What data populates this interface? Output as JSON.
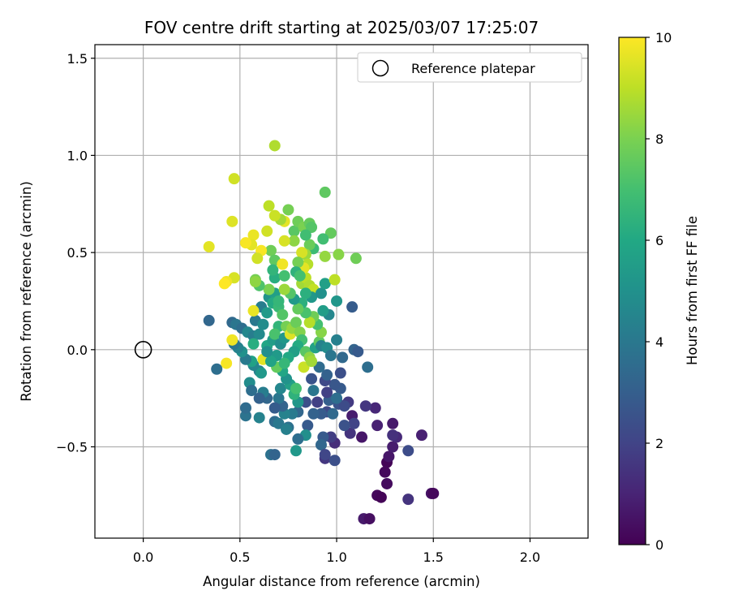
{
  "chart_data": {
    "type": "scatter",
    "title": "FOV centre drift starting at 2025/03/07 17:25:07",
    "xlabel": "Angular distance from reference (arcmin)",
    "ylabel": "Rotation from reference (arcmin)",
    "xlim": [
      -0.25,
      2.3
    ],
    "ylim": [
      -0.97,
      1.57
    ],
    "xticks": [
      0.0,
      0.5,
      1.0,
      1.5,
      2.0
    ],
    "xtick_labels": [
      "0.0",
      "0.5",
      "1.0",
      "1.5",
      "2.0"
    ],
    "yticks": [
      -0.5,
      0.0,
      0.5,
      1.0,
      1.5
    ],
    "ytick_labels": [
      "−0.5",
      "0.0",
      "0.5",
      "1.0",
      "1.5"
    ],
    "grid": true,
    "legend": {
      "placement": "top-right",
      "entries": [
        {
          "label": "Reference platepar",
          "marker": "open-circle"
        }
      ]
    },
    "reference_point": {
      "x": 0.0,
      "y": 0.0
    },
    "colorbar": {
      "label": "Hours from first FF file",
      "colormap": "viridis",
      "range": [
        0,
        10
      ],
      "ticks": [
        0,
        2,
        4,
        6,
        8,
        10
      ],
      "tick_labels": [
        "0",
        "2",
        "4",
        "6",
        "8",
        "10"
      ]
    },
    "points": [
      {
        "x": 1.26,
        "y": -0.58,
        "h": 0.1
      },
      {
        "x": 1.25,
        "y": -0.63,
        "h": 0.2
      },
      {
        "x": 1.26,
        "y": -0.69,
        "h": 0.3
      },
      {
        "x": 1.21,
        "y": -0.75,
        "h": 0.2
      },
      {
        "x": 1.23,
        "y": -0.76,
        "h": 0.1
      },
      {
        "x": 1.14,
        "y": -0.87,
        "h": 0.7
      },
      {
        "x": 1.17,
        "y": -0.87,
        "h": 0.4
      },
      {
        "x": 1.49,
        "y": -0.74,
        "h": 0.5
      },
      {
        "x": 1.5,
        "y": -0.74,
        "h": 0.2
      },
      {
        "x": 1.37,
        "y": -0.77,
        "h": 1.5
      },
      {
        "x": 1.27,
        "y": -0.55,
        "h": 0.6
      },
      {
        "x": 1.29,
        "y": -0.5,
        "h": 0.8
      },
      {
        "x": 1.31,
        "y": -0.45,
        "h": 1.2
      },
      {
        "x": 1.44,
        "y": -0.44,
        "h": 0.9
      },
      {
        "x": 1.29,
        "y": -0.38,
        "h": 0.7
      },
      {
        "x": 1.21,
        "y": -0.39,
        "h": 0.9
      },
      {
        "x": 1.2,
        "y": -0.3,
        "h": 1.1
      },
      {
        "x": 1.15,
        "y": -0.29,
        "h": 1.6
      },
      {
        "x": 1.13,
        "y": -0.45,
        "h": 0.6
      },
      {
        "x": 1.37,
        "y": -0.52,
        "h": 2.3
      },
      {
        "x": 1.29,
        "y": -0.44,
        "h": 1.4
      },
      {
        "x": 1.08,
        "y": -0.34,
        "h": 0.8
      },
      {
        "x": 1.07,
        "y": -0.43,
        "h": 1.5
      },
      {
        "x": 1.09,
        "y": -0.38,
        "h": 2.0
      },
      {
        "x": 1.04,
        "y": -0.39,
        "h": 2.5
      },
      {
        "x": 0.99,
        "y": -0.48,
        "h": 1.3
      },
      {
        "x": 0.97,
        "y": -0.45,
        "h": 1.8
      },
      {
        "x": 0.93,
        "y": -0.45,
        "h": 2.8
      },
      {
        "x": 0.94,
        "y": -0.56,
        "h": 1.6
      },
      {
        "x": 0.99,
        "y": -0.57,
        "h": 2.4
      },
      {
        "x": 0.92,
        "y": -0.49,
        "h": 3.3
      },
      {
        "x": 0.94,
        "y": -0.54,
        "h": 2.1
      },
      {
        "x": 1.01,
        "y": -0.28,
        "h": 2.6
      },
      {
        "x": 0.95,
        "y": -0.32,
        "h": 2.2
      },
      {
        "x": 0.92,
        "y": -0.33,
        "h": 2.9
      },
      {
        "x": 0.9,
        "y": -0.27,
        "h": 1.9
      },
      {
        "x": 0.98,
        "y": -0.33,
        "h": 3.4
      },
      {
        "x": 0.96,
        "y": -0.26,
        "h": 3.0
      },
      {
        "x": 1.06,
        "y": -0.27,
        "h": 1.7
      },
      {
        "x": 1.04,
        "y": -0.29,
        "h": 2.3
      },
      {
        "x": 1.02,
        "y": -0.2,
        "h": 2.8
      },
      {
        "x": 1.0,
        "y": -0.25,
        "h": 3.6
      },
      {
        "x": 0.99,
        "y": -0.18,
        "h": 2.7
      },
      {
        "x": 0.94,
        "y": -0.16,
        "h": 2.2
      },
      {
        "x": 0.95,
        "y": -0.13,
        "h": 3.1
      },
      {
        "x": 0.87,
        "y": -0.15,
        "h": 2.6
      },
      {
        "x": 0.91,
        "y": -0.09,
        "h": 3.5
      },
      {
        "x": 0.88,
        "y": -0.21,
        "h": 3.9
      },
      {
        "x": 0.84,
        "y": -0.27,
        "h": 2.4
      },
      {
        "x": 0.88,
        "y": -0.33,
        "h": 3.1
      },
      {
        "x": 0.85,
        "y": -0.39,
        "h": 2.8
      },
      {
        "x": 0.8,
        "y": -0.32,
        "h": 3.3
      },
      {
        "x": 0.8,
        "y": -0.27,
        "h": 5.2
      },
      {
        "x": 0.77,
        "y": -0.33,
        "h": 4.1
      },
      {
        "x": 0.75,
        "y": -0.4,
        "h": 3.7
      },
      {
        "x": 0.73,
        "y": -0.33,
        "h": 4.4
      },
      {
        "x": 0.72,
        "y": -0.29,
        "h": 3.2
      },
      {
        "x": 0.7,
        "y": -0.25,
        "h": 3.9
      },
      {
        "x": 0.68,
        "y": -0.3,
        "h": 2.9
      },
      {
        "x": 0.71,
        "y": -0.2,
        "h": 4.6
      },
      {
        "x": 0.76,
        "y": -0.18,
        "h": 5.6
      },
      {
        "x": 0.78,
        "y": -0.23,
        "h": 6.4
      },
      {
        "x": 0.79,
        "y": -0.2,
        "h": 7.0
      },
      {
        "x": 0.74,
        "y": -0.15,
        "h": 5.1
      },
      {
        "x": 0.72,
        "y": -0.11,
        "h": 5.9
      },
      {
        "x": 0.69,
        "y": -0.09,
        "h": 7.6
      },
      {
        "x": 0.68,
        "y": -0.37,
        "h": 3.5
      },
      {
        "x": 0.7,
        "y": -0.38,
        "h": 4.0
      },
      {
        "x": 0.66,
        "y": -0.54,
        "h": 3.7
      },
      {
        "x": 0.68,
        "y": -0.54,
        "h": 3.2
      },
      {
        "x": 0.74,
        "y": -0.41,
        "h": 4.3
      },
      {
        "x": 0.79,
        "y": -0.52,
        "h": 5.3
      },
      {
        "x": 0.84,
        "y": -0.44,
        "h": 4.9
      },
      {
        "x": 0.8,
        "y": -0.46,
        "h": 3.6
      },
      {
        "x": 0.64,
        "y": -0.25,
        "h": 3.3
      },
      {
        "x": 0.62,
        "y": -0.22,
        "h": 4.2
      },
      {
        "x": 0.6,
        "y": -0.25,
        "h": 3.1
      },
      {
        "x": 0.6,
        "y": -0.35,
        "h": 4.4
      },
      {
        "x": 0.53,
        "y": -0.34,
        "h": 3.8
      },
      {
        "x": 0.53,
        "y": -0.3,
        "h": 3.5
      },
      {
        "x": 0.55,
        "y": -0.17,
        "h": 4.8
      },
      {
        "x": 0.56,
        "y": -0.21,
        "h": 3.6
      },
      {
        "x": 0.6,
        "y": -0.11,
        "h": 4.3
      },
      {
        "x": 0.61,
        "y": -0.12,
        "h": 5.3
      },
      {
        "x": 0.57,
        "y": -0.08,
        "h": 4.5
      },
      {
        "x": 0.56,
        "y": -0.06,
        "h": 5.7
      },
      {
        "x": 0.53,
        "y": -0.05,
        "h": 4.1
      },
      {
        "x": 0.51,
        "y": -0.01,
        "h": 5.0
      },
      {
        "x": 0.49,
        "y": 0.01,
        "h": 4.4
      },
      {
        "x": 0.47,
        "y": 0.03,
        "h": 3.9
      },
      {
        "x": 0.46,
        "y": 0.05,
        "h": 9.8
      },
      {
        "x": 0.43,
        "y": -0.07,
        "h": 9.9
      },
      {
        "x": 0.38,
        "y": -0.1,
        "h": 3.6
      },
      {
        "x": 0.34,
        "y": 0.15,
        "h": 3.3
      },
      {
        "x": 0.46,
        "y": 0.14,
        "h": 3.4
      },
      {
        "x": 0.48,
        "y": 0.13,
        "h": 3.9
      },
      {
        "x": 0.51,
        "y": 0.11,
        "h": 3.6
      },
      {
        "x": 0.54,
        "y": 0.09,
        "h": 4.6
      },
      {
        "x": 0.57,
        "y": 0.07,
        "h": 4.2
      },
      {
        "x": 0.6,
        "y": 0.08,
        "h": 4.7
      },
      {
        "x": 0.58,
        "y": 0.15,
        "h": 4.0
      },
      {
        "x": 0.62,
        "y": 0.13,
        "h": 4.8
      },
      {
        "x": 0.61,
        "y": 0.22,
        "h": 4.2
      },
      {
        "x": 0.64,
        "y": 0.19,
        "h": 5.4
      },
      {
        "x": 0.64,
        "y": 0.02,
        "h": 5.9
      },
      {
        "x": 0.62,
        "y": -0.05,
        "h": 9.6
      },
      {
        "x": 0.57,
        "y": 0.03,
        "h": 6.2
      },
      {
        "x": 0.57,
        "y": 0.2,
        "h": 9.7
      },
      {
        "x": 0.65,
        "y": 0.27,
        "h": 5.1
      },
      {
        "x": 0.68,
        "y": 0.29,
        "h": 5.6
      },
      {
        "x": 0.67,
        "y": 0.24,
        "h": 6.1
      },
      {
        "x": 0.7,
        "y": 0.22,
        "h": 6.7
      },
      {
        "x": 0.72,
        "y": 0.18,
        "h": 7.3
      },
      {
        "x": 0.7,
        "y": 0.12,
        "h": 6.5
      },
      {
        "x": 0.67,
        "y": 0.05,
        "h": 5.5
      },
      {
        "x": 0.68,
        "y": 0.08,
        "h": 7.1
      },
      {
        "x": 0.71,
        "y": 0.03,
        "h": 4.9
      },
      {
        "x": 0.73,
        "y": 0.06,
        "h": 5.3
      },
      {
        "x": 0.74,
        "y": 0.12,
        "h": 7.9
      },
      {
        "x": 0.76,
        "y": 0.08,
        "h": 9.5
      },
      {
        "x": 0.77,
        "y": 0.11,
        "h": 8.4
      },
      {
        "x": 0.79,
        "y": 0.14,
        "h": 7.7
      },
      {
        "x": 0.81,
        "y": 0.09,
        "h": 8.1
      },
      {
        "x": 0.82,
        "y": 0.05,
        "h": 6.9
      },
      {
        "x": 0.8,
        "y": 0.02,
        "h": 6.1
      },
      {
        "x": 0.78,
        "y": -0.01,
        "h": 5.6
      },
      {
        "x": 0.75,
        "y": -0.04,
        "h": 6.0
      },
      {
        "x": 0.73,
        "y": -0.07,
        "h": 6.6
      },
      {
        "x": 0.69,
        "y": -0.03,
        "h": 5.4
      },
      {
        "x": 0.66,
        "y": -0.06,
        "h": 5.8
      },
      {
        "x": 0.64,
        "y": -0.01,
        "h": 4.9
      },
      {
        "x": 0.84,
        "y": -0.01,
        "h": 7.4
      },
      {
        "x": 0.86,
        "y": -0.04,
        "h": 8.3
      },
      {
        "x": 0.83,
        "y": -0.09,
        "h": 9.2
      },
      {
        "x": 0.87,
        "y": -0.06,
        "h": 8.6
      },
      {
        "x": 0.89,
        "y": 0.01,
        "h": 5.7
      },
      {
        "x": 0.91,
        "y": 0.04,
        "h": 7.5
      },
      {
        "x": 0.92,
        "y": 0.09,
        "h": 8.2
      },
      {
        "x": 0.9,
        "y": 0.13,
        "h": 7.0
      },
      {
        "x": 0.88,
        "y": 0.17,
        "h": 7.8
      },
      {
        "x": 0.86,
        "y": 0.14,
        "h": 8.9
      },
      {
        "x": 0.84,
        "y": 0.19,
        "h": 7.1
      },
      {
        "x": 0.82,
        "y": 0.24,
        "h": 6.3
      },
      {
        "x": 0.8,
        "y": 0.21,
        "h": 7.6
      },
      {
        "x": 0.78,
        "y": 0.26,
        "h": 5.4
      },
      {
        "x": 0.76,
        "y": 0.29,
        "h": 7.3
      },
      {
        "x": 0.73,
        "y": 0.31,
        "h": 8.5
      },
      {
        "x": 0.7,
        "y": 0.25,
        "h": 6.6
      },
      {
        "x": 0.68,
        "y": 0.37,
        "h": 6.2
      },
      {
        "x": 0.65,
        "y": 0.31,
        "h": 8.0
      },
      {
        "x": 0.6,
        "y": 0.33,
        "h": 7.2
      },
      {
        "x": 0.58,
        "y": 0.36,
        "h": 7.9
      },
      {
        "x": 0.82,
        "y": 0.34,
        "h": 8.6
      },
      {
        "x": 0.84,
        "y": 0.37,
        "h": 9.0
      },
      {
        "x": 0.86,
        "y": 0.33,
        "h": 8.8
      },
      {
        "x": 0.88,
        "y": 0.31,
        "h": 9.1
      },
      {
        "x": 0.87,
        "y": 0.27,
        "h": 5.3
      },
      {
        "x": 0.84,
        "y": 0.29,
        "h": 6.3
      },
      {
        "x": 0.92,
        "y": 0.29,
        "h": 5.0
      },
      {
        "x": 0.94,
        "y": 0.34,
        "h": 5.6
      },
      {
        "x": 0.96,
        "y": 0.18,
        "h": 4.6
      },
      {
        "x": 0.93,
        "y": 0.2,
        "h": 5.5
      },
      {
        "x": 0.92,
        "y": 0.02,
        "h": 4.4
      },
      {
        "x": 0.95,
        "y": 0.01,
        "h": 4.8
      },
      {
        "x": 0.97,
        "y": -0.03,
        "h": 3.9
      },
      {
        "x": 1.0,
        "y": 0.05,
        "h": 4.3
      },
      {
        "x": 1.0,
        "y": 0.25,
        "h": 5.2
      },
      {
        "x": 1.08,
        "y": 0.22,
        "h": 2.9
      },
      {
        "x": 1.09,
        "y": 0.0,
        "h": 3.2
      },
      {
        "x": 1.11,
        "y": -0.01,
        "h": 2.8
      },
      {
        "x": 1.16,
        "y": -0.09,
        "h": 3.6
      },
      {
        "x": 1.03,
        "y": -0.04,
        "h": 3.4
      },
      {
        "x": 1.02,
        "y": -0.12,
        "h": 2.4
      },
      {
        "x": 0.95,
        "y": -0.22,
        "h": 1.9
      },
      {
        "x": 0.99,
        "y": 0.36,
        "h": 9.0
      },
      {
        "x": 0.94,
        "y": 0.48,
        "h": 8.4
      },
      {
        "x": 1.01,
        "y": 0.49,
        "h": 8.2
      },
      {
        "x": 1.1,
        "y": 0.47,
        "h": 7.8
      },
      {
        "x": 0.97,
        "y": 0.6,
        "h": 7.6
      },
      {
        "x": 0.94,
        "y": 0.81,
        "h": 7.5
      },
      {
        "x": 0.93,
        "y": 0.57,
        "h": 6.9
      },
      {
        "x": 0.88,
        "y": 0.52,
        "h": 6.8
      },
      {
        "x": 0.86,
        "y": 0.54,
        "h": 7.7
      },
      {
        "x": 0.84,
        "y": 0.49,
        "h": 8.5
      },
      {
        "x": 0.82,
        "y": 0.5,
        "h": 9.4
      },
      {
        "x": 0.85,
        "y": 0.44,
        "h": 8.9
      },
      {
        "x": 0.83,
        "y": 0.42,
        "h": 9.6
      },
      {
        "x": 0.8,
        "y": 0.45,
        "h": 7.9
      },
      {
        "x": 0.79,
        "y": 0.4,
        "h": 6.4
      },
      {
        "x": 0.81,
        "y": 0.38,
        "h": 7.0
      },
      {
        "x": 0.78,
        "y": 0.61,
        "h": 7.4
      },
      {
        "x": 0.8,
        "y": 0.66,
        "h": 7.8
      },
      {
        "x": 0.83,
        "y": 0.63,
        "h": 8.0
      },
      {
        "x": 0.86,
        "y": 0.65,
        "h": 7.6
      },
      {
        "x": 0.87,
        "y": 0.63,
        "h": 7.3
      },
      {
        "x": 0.84,
        "y": 0.59,
        "h": 6.9
      },
      {
        "x": 0.78,
        "y": 0.56,
        "h": 8.3
      },
      {
        "x": 0.75,
        "y": 0.72,
        "h": 7.9
      },
      {
        "x": 0.73,
        "y": 0.66,
        "h": 9.6
      },
      {
        "x": 0.71,
        "y": 0.67,
        "h": 8.6
      },
      {
        "x": 0.68,
        "y": 0.69,
        "h": 9.2
      },
      {
        "x": 0.65,
        "y": 0.74,
        "h": 9.0
      },
      {
        "x": 0.64,
        "y": 0.61,
        "h": 9.3
      },
      {
        "x": 0.66,
        "y": 0.51,
        "h": 7.8
      },
      {
        "x": 0.68,
        "y": 0.46,
        "h": 7.5
      },
      {
        "x": 0.67,
        "y": 0.41,
        "h": 6.5
      },
      {
        "x": 0.72,
        "y": 0.44,
        "h": 9.8
      },
      {
        "x": 0.73,
        "y": 0.38,
        "h": 7.0
      },
      {
        "x": 0.73,
        "y": 0.56,
        "h": 9.4
      },
      {
        "x": 0.61,
        "y": 0.51,
        "h": 9.9
      },
      {
        "x": 0.59,
        "y": 0.47,
        "h": 9.3
      },
      {
        "x": 0.57,
        "y": 0.59,
        "h": 9.7
      },
      {
        "x": 0.56,
        "y": 0.54,
        "h": 9.6
      },
      {
        "x": 0.53,
        "y": 0.55,
        "h": 9.9
      },
      {
        "x": 0.58,
        "y": 0.35,
        "h": 8.3
      },
      {
        "x": 0.47,
        "y": 0.37,
        "h": 9.4
      },
      {
        "x": 0.43,
        "y": 0.35,
        "h": 9.8
      },
      {
        "x": 0.42,
        "y": 0.34,
        "h": 10.0
      },
      {
        "x": 0.46,
        "y": 0.66,
        "h": 9.5
      },
      {
        "x": 0.34,
        "y": 0.53,
        "h": 9.6
      },
      {
        "x": 0.47,
        "y": 0.88,
        "h": 9.3
      },
      {
        "x": 0.68,
        "y": 1.05,
        "h": 8.8
      }
    ]
  }
}
